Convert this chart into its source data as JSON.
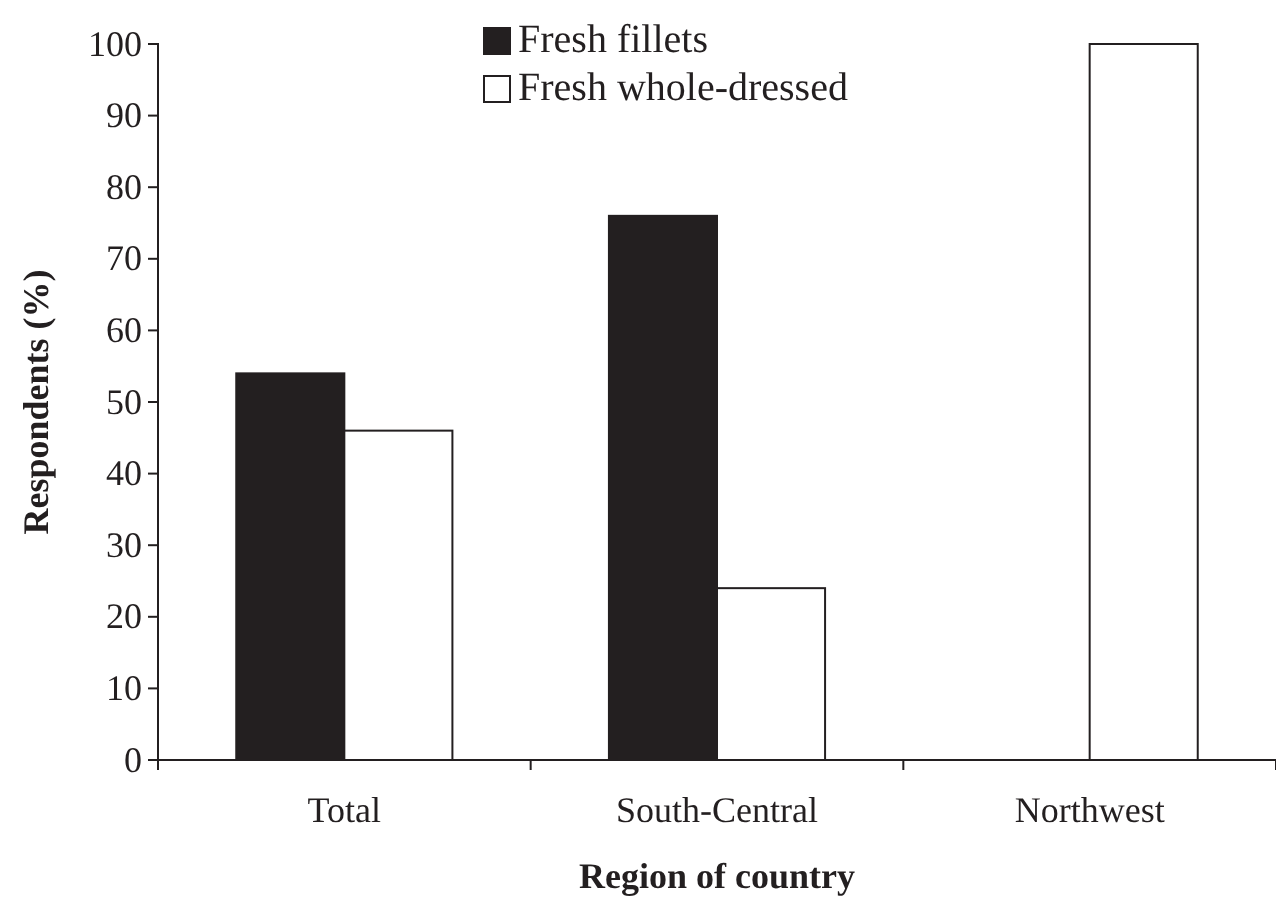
{
  "chart_data": {
    "type": "bar",
    "xlabel": "Region of country",
    "ylabel": "Respondents (%)",
    "categories": [
      "Total",
      "South-Central",
      "Northwest"
    ],
    "series": [
      {
        "name": "Fresh fillets",
        "color": "#231f20",
        "values": [
          54,
          76,
          0
        ]
      },
      {
        "name": "Fresh whole-dressed",
        "color": "#ffffff",
        "values": [
          46,
          24,
          100
        ]
      }
    ],
    "ylim": [
      0,
      100
    ],
    "yticks": [
      0,
      10,
      20,
      30,
      40,
      50,
      60,
      70,
      80,
      90,
      100
    ],
    "legend": "top"
  }
}
